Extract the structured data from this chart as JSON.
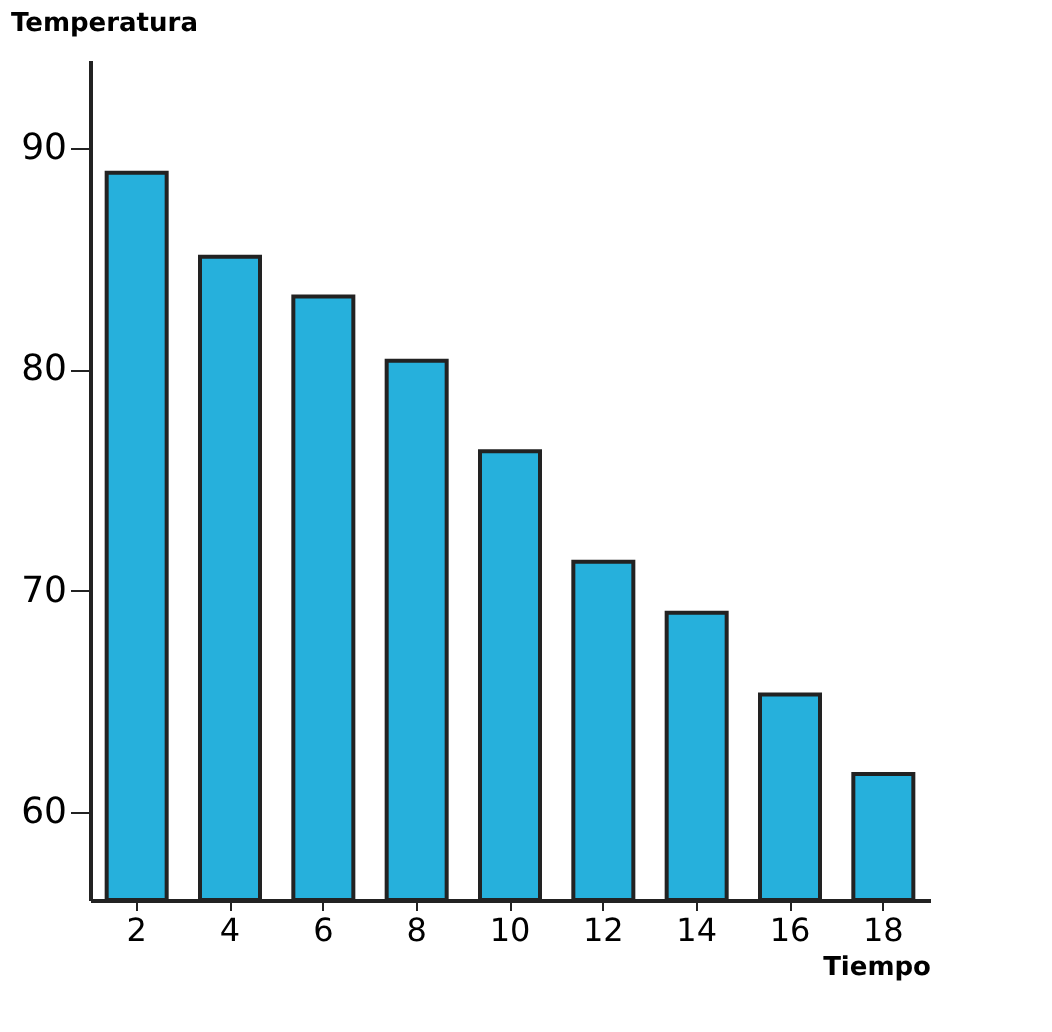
{
  "chart_data": {
    "type": "bar",
    "ylabel": "Temperatura",
    "xlabel": "Tiempo",
    "categories": [
      "2",
      "4",
      "6",
      "8",
      "10",
      "12",
      "14",
      "16",
      "18"
    ],
    "values": [
      88.9,
      85.1,
      83.3,
      80.4,
      76.3,
      71.3,
      69,
      65.3,
      61.7
    ],
    "color": "#26b0dc",
    "ylim": [
      56,
      94
    ],
    "yticks": [
      60,
      70,
      80,
      90
    ]
  }
}
